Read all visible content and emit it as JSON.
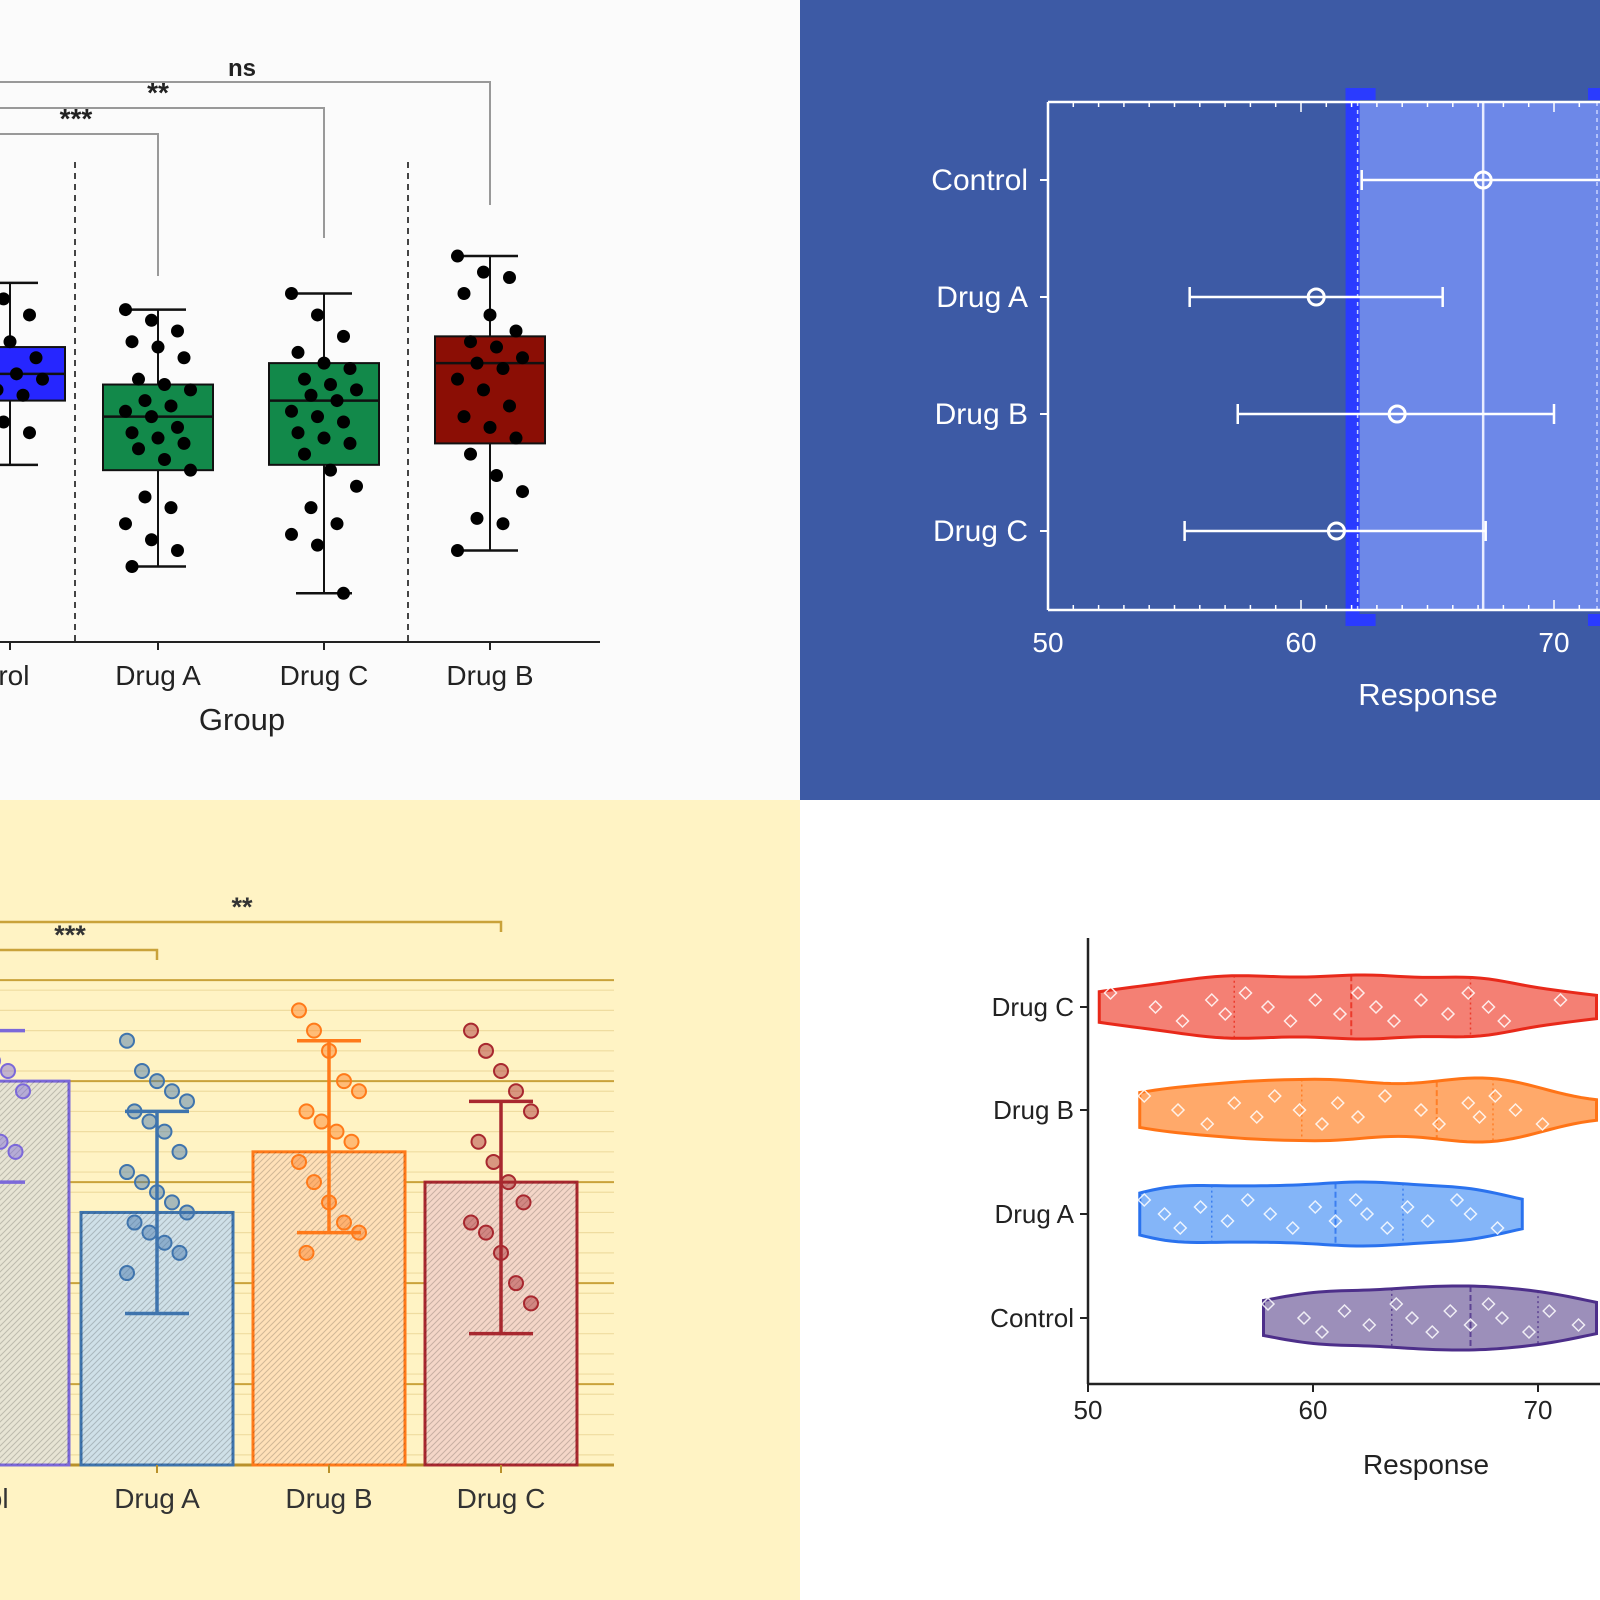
{
  "colors": {
    "panel_a_bg": "#fbfbfb",
    "panel_b_bg": "#3d5aa5",
    "panel_c_bg": "#fff3c4",
    "panel_d_bg": "#ffffff",
    "control_blue": "#2626ff",
    "drug_a_green": "#12894a",
    "drug_c_green": "#12894a",
    "drug_b_red": "#8b0e05",
    "bar_control": "#7b68d9",
    "bar_drug_a": "#3f74ad",
    "bar_drug_b": "#ff7a1a",
    "bar_drug_c": "#a8282f",
    "violin_drug_c": "#f05545",
    "violin_drug_b": "#ff8c38",
    "violin_drug_a": "#5b9cf5",
    "violin_control": "#7b6aa3"
  },
  "chart_data": [
    {
      "id": "panel_a",
      "type": "box",
      "categories": [
        "Control",
        "Drug A",
        "Drug C",
        "Drug B"
      ],
      "visible_tick_labels": [
        "trol",
        "Drug A",
        "Drug C",
        "Drug B"
      ],
      "xlabel": "Group",
      "ylabel": "",
      "ylim": [
        50,
        84
      ],
      "boxes": [
        {
          "name": "Control",
          "whisker_low": 63,
          "q1": 69,
          "median": 71.5,
          "q3": 74,
          "whisker_high": 80,
          "points": [
            79.5,
            78.5,
            77,
            75.5,
            74.5,
            73,
            72,
            71.5,
            71,
            70,
            69.5,
            68.5,
            67,
            66,
            64.5
          ]
        },
        {
          "name": "Drug A",
          "whisker_low": 53.5,
          "q1": 62.5,
          "median": 67.5,
          "q3": 70.5,
          "whisker_high": 77.5,
          "points": [
            77.5,
            76.5,
            75.5,
            74.5,
            74,
            73,
            71,
            70.5,
            70,
            69,
            68.5,
            68,
            67.5,
            66.5,
            66,
            65.5,
            65,
            64.5,
            63.5,
            62.5,
            60,
            59,
            57.5,
            56,
            55,
            53.5
          ]
        },
        {
          "name": "Drug C",
          "whisker_low": 51,
          "q1": 63,
          "median": 69,
          "q3": 72.5,
          "whisker_high": 79,
          "points": [
            79,
            77,
            75,
            73.5,
            72.5,
            72,
            71,
            70.5,
            70,
            69.5,
            69,
            68,
            67.5,
            67,
            66,
            65.5,
            65,
            64,
            62.5,
            61,
            59,
            57.5,
            56.5,
            55.5,
            51
          ]
        },
        {
          "name": "Drug B",
          "whisker_low": 55,
          "q1": 65,
          "median": 72.5,
          "q3": 75,
          "whisker_high": 82.5,
          "points": [
            82.5,
            81,
            80.5,
            79,
            77,
            75.5,
            74.5,
            74,
            73,
            72.5,
            72,
            71,
            70,
            68.5,
            67.5,
            66.5,
            65.5,
            64,
            62,
            60.5,
            58,
            57.5,
            55
          ]
        }
      ],
      "significance": [
        {
          "from": "Control",
          "to": "Drug A",
          "label": "***"
        },
        {
          "from": "Control",
          "to": "Drug C",
          "label": "**"
        },
        {
          "from": "Control",
          "to": "Drug B",
          "label": "ns"
        }
      ]
    },
    {
      "id": "panel_b",
      "type": "forest",
      "categories": [
        "Control",
        "Drug A",
        "Drug B",
        "Drug C"
      ],
      "points": [
        {
          "name": "Control",
          "mean": 67.2,
          "ci_low": 62.4,
          "ci_high": 72.3
        },
        {
          "name": "Drug A",
          "mean": 60.6,
          "ci_low": 55.6,
          "ci_high": 65.6
        },
        {
          "name": "Drug B",
          "mean": 63.8,
          "ci_low": 57.5,
          "ci_high": 70.0
        },
        {
          "name": "Drug C",
          "mean": 61.4,
          "ci_low": 55.4,
          "ci_high": 67.3
        }
      ],
      "reference_band": [
        62.0,
        72.2
      ],
      "reference_line": 67.2,
      "xlabel": "Response",
      "xlim": [
        50,
        72.6
      ],
      "xticks": [
        "50",
        "60",
        "70"
      ],
      "xtick_values": [
        50,
        60,
        70
      ]
    },
    {
      "id": "panel_c",
      "type": "bar",
      "categories": [
        "Control",
        "Drug A",
        "Drug B",
        "Drug C"
      ],
      "visible_tick_labels": [
        "rol",
        "Drug A",
        "Drug B",
        "Drug C"
      ],
      "values": [
        67.0,
        60.5,
        63.5,
        62.0
      ],
      "sd_low": [
        62.0,
        55.5,
        59.5,
        54.5
      ],
      "sd_high": [
        69.5,
        65.5,
        69.0,
        66.0
      ],
      "ylim": [
        48,
        72.5
      ],
      "reference_lines": [
        52,
        57,
        62,
        67,
        72
      ],
      "points": [
        [
          70,
          68.5,
          68,
          67.5,
          66.5,
          66,
          65,
          64,
          63.5,
          62.5
        ],
        [
          69,
          67.5,
          67,
          66.5,
          66,
          65.5,
          65,
          64.5,
          63.5,
          62.5,
          62,
          61.5,
          61,
          60.5,
          60,
          59.5,
          59,
          58.5,
          57.5
        ],
        [
          70.5,
          69.5,
          68.5,
          67,
          66.5,
          65.5,
          65,
          64.5,
          64,
          63,
          62,
          61,
          60,
          59.5,
          58.5
        ],
        [
          69.5,
          68.5,
          67.5,
          66.5,
          65.5,
          64,
          63,
          62,
          61,
          60,
          59.5,
          58.5,
          57,
          56
        ]
      ],
      "significance": [
        {
          "from": "Control",
          "to": "Drug A",
          "label": "***"
        },
        {
          "from": "Control",
          "to": "Drug C",
          "label": "**"
        }
      ]
    },
    {
      "id": "panel_d",
      "type": "violin",
      "categories": [
        "Drug C",
        "Drug B",
        "Drug A",
        "Control"
      ],
      "xlabel": "Response",
      "xlim": [
        50,
        72.6
      ],
      "xticks": [
        "50",
        "60",
        "70"
      ],
      "xtick_values": [
        50,
        60,
        70
      ],
      "violins": [
        {
          "name": "Drug C",
          "min": 50.5,
          "max": 72.6,
          "median": 61.7,
          "q1": 56.5,
          "q3": 67,
          "points": [
            51,
            53,
            54.2,
            55.5,
            56.1,
            57,
            58,
            59,
            60.1,
            61.2,
            62,
            62.8,
            63.6,
            64.8,
            66,
            66.9,
            67.8,
            68.5,
            71
          ]
        },
        {
          "name": "Drug B",
          "min": 52.3,
          "max": 72.6,
          "median": 65.5,
          "q1": 59.5,
          "q3": 68,
          "points": [
            52.5,
            54,
            55.3,
            56.5,
            57.5,
            58.3,
            59.4,
            60.4,
            61.1,
            62,
            63.2,
            64.8,
            65.6,
            66.9,
            67.4,
            68.1,
            69,
            70.2
          ]
        },
        {
          "name": "Drug A",
          "min": 52.3,
          "max": 69.3,
          "median": 61,
          "q1": 55.5,
          "q3": 64,
          "points": [
            52.5,
            53.4,
            54.1,
            55,
            56.2,
            57.1,
            58.1,
            59.1,
            60.1,
            61,
            61.9,
            62.4,
            63.3,
            64.2,
            65.1,
            66.4,
            67,
            68.2
          ]
        },
        {
          "name": "Control",
          "min": 57.8,
          "max": 72.6,
          "median": 67,
          "q1": 63.5,
          "q3": 70,
          "points": [
            58,
            59.6,
            60.4,
            61.4,
            62.5,
            63.7,
            64.4,
            65.3,
            66.1,
            67,
            67.8,
            68.4,
            69.6,
            70.5,
            71.8
          ]
        }
      ]
    }
  ]
}
